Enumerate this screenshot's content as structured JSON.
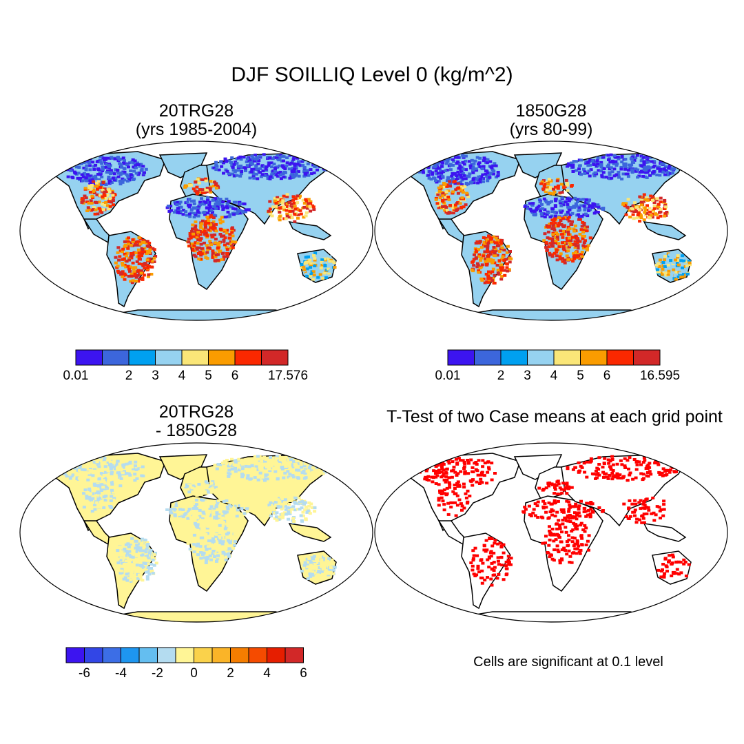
{
  "page": {
    "title": "DJF SOILLIQ Level 0 (kg/m^2)",
    "note": "Cells are significant at 0.1 level"
  },
  "colors": {
    "scale8": [
      "#3c14f0",
      "#3c66dc",
      "#00a0f0",
      "#96d2f0",
      "#fae678",
      "#fa9c00",
      "#fa2800",
      "#d22828"
    ],
    "scale13": [
      "#3c14f0",
      "#3246e6",
      "#3c6ee6",
      "#1e96f0",
      "#64bef0",
      "#b4dcf0",
      "#fff596",
      "#fad24b",
      "#fab428",
      "#f57d00",
      "#f54b00",
      "#e61e00",
      "#d22828"
    ],
    "land_line": "#000000",
    "signif": "#ff0000"
  },
  "chart_data": [
    {
      "type": "map",
      "title": "20TRG28",
      "subtitle": "(yrs 1985-2004)",
      "projection": "Robinson",
      "colorbar": {
        "levels": 8,
        "tick_labels": [
          "0.01",
          "",
          "2",
          "3",
          "4",
          "5",
          "6",
          "",
          "17.576"
        ]
      }
    },
    {
      "type": "map",
      "title": "1850G28",
      "subtitle": "(yrs 80-99)",
      "projection": "Robinson",
      "colorbar": {
        "levels": 8,
        "tick_labels": [
          "0.01",
          "",
          "2",
          "3",
          "4",
          "5",
          "6",
          "",
          "16.595"
        ]
      }
    },
    {
      "type": "map",
      "title": "20TRG28",
      "subtitle": "- 1850G28",
      "projection": "Robinson",
      "colorbar": {
        "levels": 13,
        "tick_labels": [
          "",
          "-6",
          "",
          "-4",
          "",
          "-2",
          "",
          "0",
          "",
          "2",
          "",
          "4",
          "",
          "6"
        ]
      }
    },
    {
      "type": "map",
      "title": "T-Test of two Case means at each grid point",
      "projection": "Robinson"
    }
  ]
}
